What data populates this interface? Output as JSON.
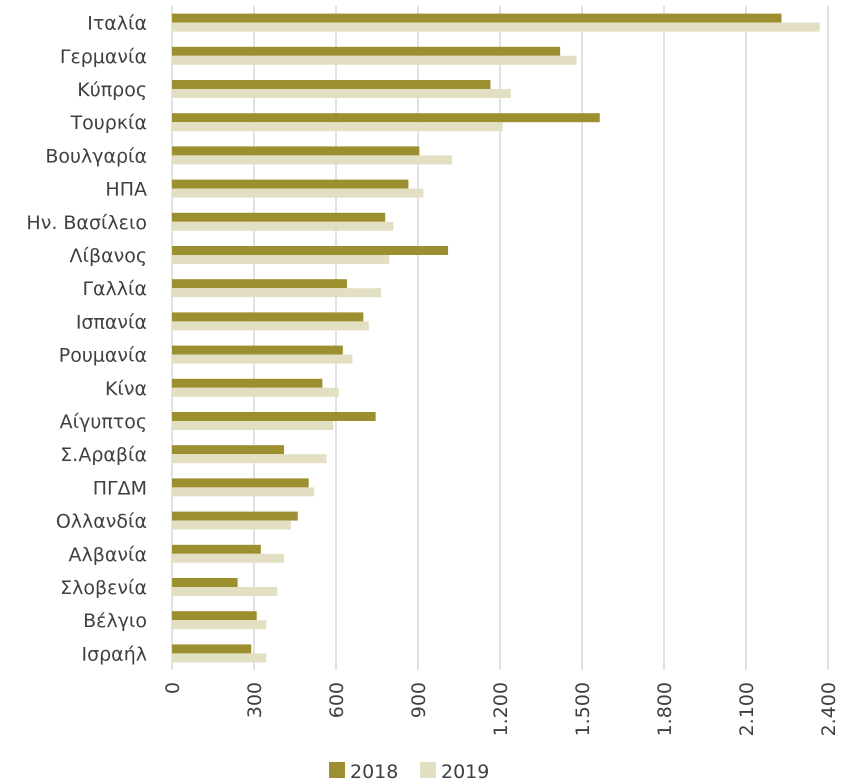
{
  "chart_data": {
    "type": "bar",
    "orientation": "horizontal",
    "title": "",
    "xlabel": "",
    "ylabel": "",
    "categories": [
      "Ιταλία",
      "Γερμανία",
      "Κύπρος",
      "Τουρκία",
      "Βουλγαρία",
      "ΗΠΑ",
      "Ην. Βασίλειο",
      "Λίβανος",
      "Γαλλία",
      "Ισπανία",
      "Ρουμανία",
      "Κίνα",
      "Αίγυπτος",
      "Σ.Αραβία",
      "ΠΓΔΜ",
      "Ολλανδία",
      "Αλβανία",
      "Σλοβενία",
      "Βέλγιο",
      "Ισραήλ"
    ],
    "series": [
      {
        "name": "2018",
        "color": "#9c8f2f",
        "values": [
          2230,
          1420,
          1165,
          1565,
          905,
          865,
          780,
          1010,
          640,
          700,
          625,
          550,
          745,
          410,
          500,
          460,
          325,
          240,
          310,
          290
        ]
      },
      {
        "name": "2019",
        "color": "#e3dfc3",
        "values": [
          2370,
          1480,
          1240,
          1210,
          1025,
          920,
          810,
          795,
          765,
          720,
          660,
          610,
          590,
          565,
          520,
          435,
          410,
          385,
          345,
          345
        ]
      }
    ],
    "xticks": [
      0,
      300,
      600,
      900,
      1200,
      1500,
      1800,
      2100,
      2400
    ],
    "xtick_labels": [
      "0",
      "300",
      "600",
      "900",
      "1.200",
      "1.500",
      "1.800",
      "2.100",
      "2.400"
    ],
    "xlim": [
      0,
      2400
    ],
    "grid": true,
    "legend_position": "bottom"
  }
}
